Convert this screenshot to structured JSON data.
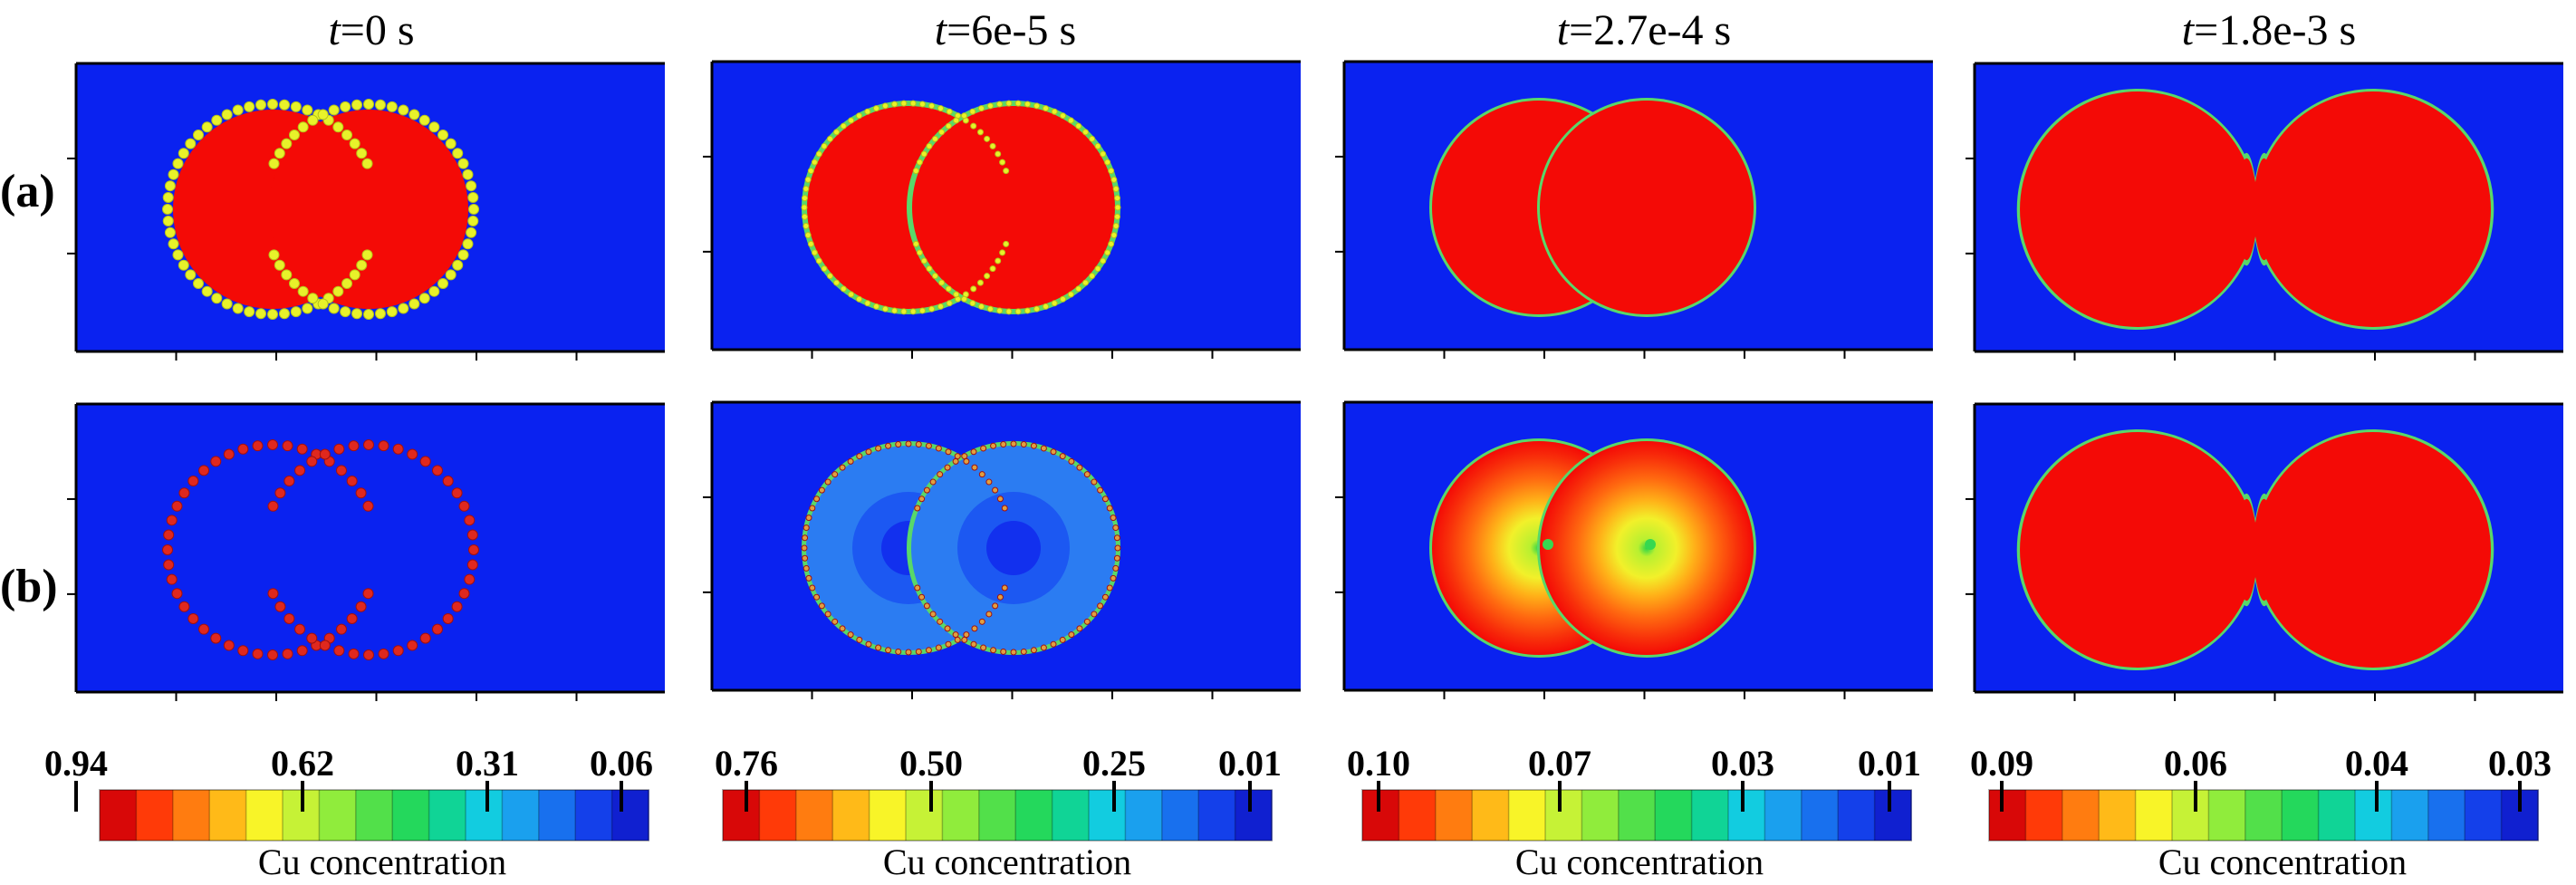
{
  "columns": [
    {
      "t_label": "t",
      "t_value": "=0 s",
      "colorbar": {
        "ticks": [
          "0.94",
          "0.62",
          "0.31",
          "0.06"
        ],
        "title": "Cu concentration"
      }
    },
    {
      "t_label": "t",
      "t_value": "=6e-5 s",
      "colorbar": {
        "ticks": [
          "0.76",
          "0.50",
          "0.25",
          "0.01"
        ],
        "title": "Cu concentration"
      }
    },
    {
      "t_label": "t",
      "t_value": "=2.7e-4 s",
      "colorbar": {
        "ticks": [
          "0.10",
          "0.07",
          "0.03",
          "0.01"
        ],
        "title": "Cu concentration"
      }
    },
    {
      "t_label": "t",
      "t_value": "=1.8e-3 s",
      "colorbar": {
        "ticks": [
          "0.09",
          "0.06",
          "0.04",
          "0.03"
        ],
        "title": "Cu concentration"
      }
    }
  ],
  "rows": [
    {
      "label": "(a)"
    },
    {
      "label": "(b)"
    }
  ],
  "colors": {
    "background_blue": "#0a22f0",
    "particle_red": "#f40a06",
    "marker_yellow": "#e8f22a",
    "marker_red": "#e0281e",
    "interface_green": "#58d86a",
    "core_blue_light": "#2b7cf2",
    "core_blue_mid": "#1c58f2",
    "core_blue_dark": "#1230ee",
    "hot_orange": "#ff6a10",
    "hot_orange_light": "#ffa41a",
    "hot_yellow": "#f0f028",
    "hot_green": "#9cf23c"
  },
  "colorbar_swatches": [
    "#d80808",
    "#ff3a08",
    "#ff7c10",
    "#ffba18",
    "#f8f428",
    "#c6f236",
    "#90ec3c",
    "#52e04a",
    "#24d85c",
    "#10d496",
    "#12cce0",
    "#1aa0ee",
    "#1870ee",
    "#1440ea",
    "#1020d0"
  ]
}
